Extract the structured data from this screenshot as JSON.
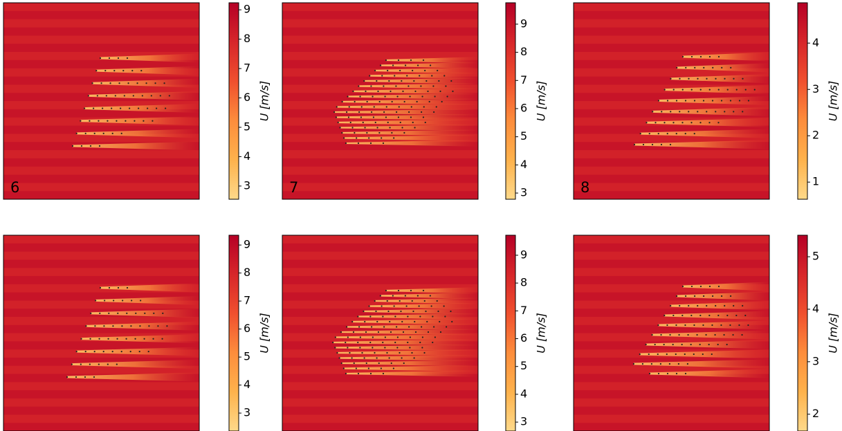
{
  "chart_data": [
    {
      "type": "heatmap",
      "panel_label": "6",
      "colormap": [
        "#fed98a",
        "#feb24c",
        "#fd8d3c",
        "#f0502e",
        "#d7262a",
        "#b50026"
      ],
      "colorbar": {
        "label": "U [m/s]",
        "lim": [
          2.55,
          9.24
        ],
        "ticks": [
          3,
          4,
          5,
          6,
          7,
          8,
          9
        ]
      }
    },
    {
      "type": "heatmap",
      "panel_label": "7",
      "colormap": [
        "#fed98a",
        "#feb24c",
        "#fd8d3c",
        "#f0502e",
        "#d7262a",
        "#b50026"
      ],
      "colorbar": {
        "label": "U [m/s]",
        "lim": [
          2.78,
          9.76
        ],
        "ticks": [
          3,
          4,
          5,
          6,
          7,
          8,
          9
        ]
      }
    },
    {
      "type": "heatmap",
      "panel_label": "8",
      "colormap": [
        "#fed98a",
        "#feb24c",
        "#fd8d3c",
        "#f0502e",
        "#d7262a",
        "#b50026"
      ],
      "colorbar": {
        "label": "U [m/s]",
        "lim": [
          0.63,
          4.87
        ],
        "ticks": [
          1,
          2,
          3,
          4
        ]
      }
    },
    {
      "type": "heatmap",
      "colormap": [
        "#fed98a",
        "#feb24c",
        "#fd8d3c",
        "#f0502e",
        "#d7262a",
        "#b50026"
      ],
      "colorbar": {
        "label": "U [m/s]",
        "lim": [
          2.36,
          9.35
        ],
        "ticks": [
          3,
          4,
          5,
          6,
          7,
          8,
          9
        ]
      }
    },
    {
      "type": "heatmap",
      "colormap": [
        "#fed98a",
        "#feb24c",
        "#fd8d3c",
        "#f0502e",
        "#d7262a",
        "#b50026"
      ],
      "colorbar": {
        "label": "U [m/s]",
        "lim": [
          2.68,
          9.72
        ],
        "ticks": [
          3,
          4,
          5,
          6,
          7,
          8,
          9
        ]
      }
    },
    {
      "type": "heatmap",
      "colormap": [
        "#fed98a",
        "#feb24c",
        "#fd8d3c",
        "#f0502e",
        "#d7262a",
        "#b50026"
      ],
      "colorbar": {
        "label": "U [m/s]",
        "lim": [
          1.68,
          5.41
        ],
        "ticks": [
          2,
          3,
          4,
          5
        ]
      }
    }
  ]
}
